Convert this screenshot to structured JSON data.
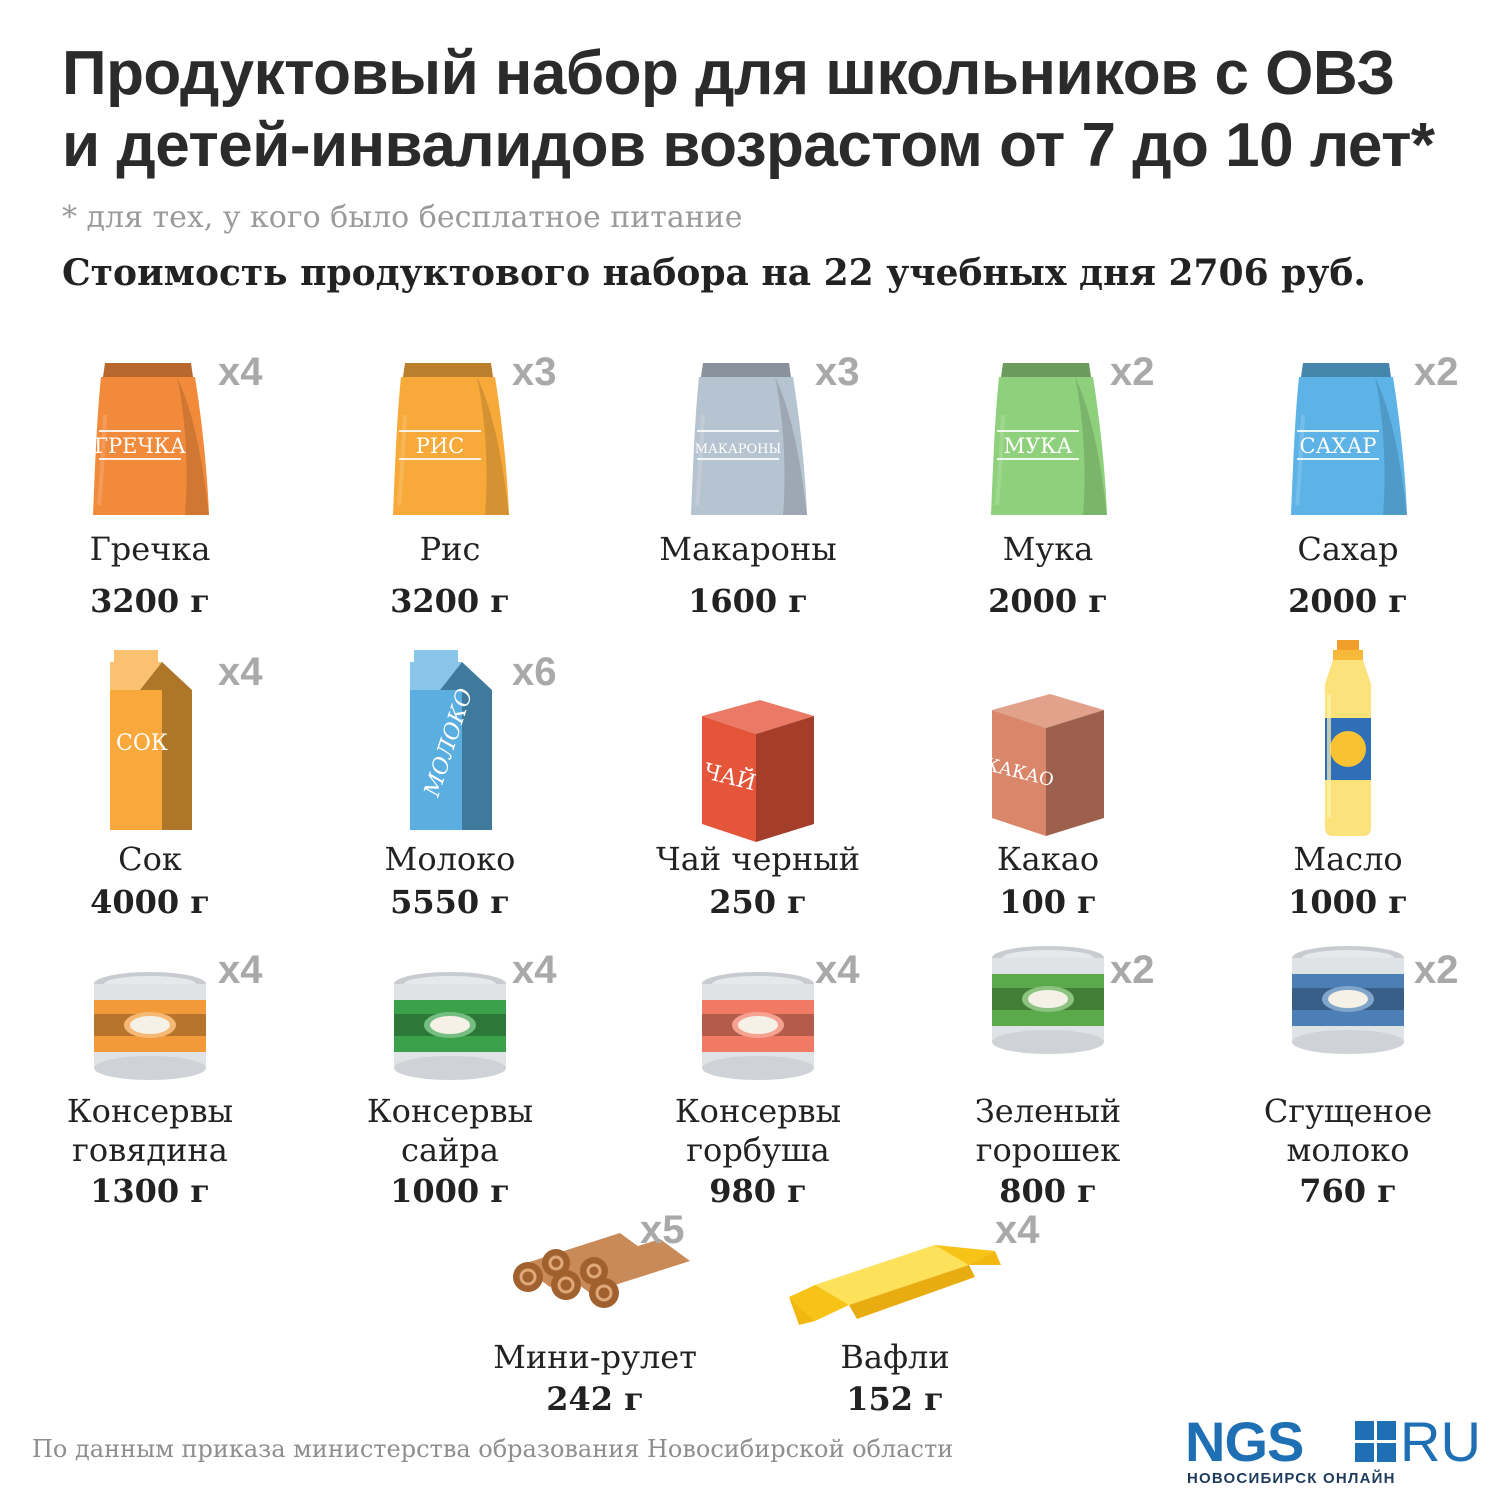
{
  "header": {
    "title_line1": "Продуктовый набор для школьников с ОВЗ",
    "title_line2": "и детей-инвалидов возрастом от 7 до 10 лет*",
    "note": "* для тех, у кого было бесплатное питание",
    "cost": "Стоимость продуктового набора на 22 учебных дня 2706 руб."
  },
  "items": [
    {
      "name": "Гречка",
      "weight": "3200 г",
      "mult": "x4",
      "icon": "buckwheat-bag-icon",
      "label": "ГРЕЧКА",
      "color": "#f28a3c"
    },
    {
      "name": "Рис",
      "weight": "3200 г",
      "mult": "x3",
      "icon": "rice-bag-icon",
      "label": "РИС",
      "color": "#f7a93a"
    },
    {
      "name": "Макароны",
      "weight": "1600 г",
      "mult": "x3",
      "icon": "pasta-bag-icon",
      "label": "МАКАРОНЫ",
      "color": "#b6c3d0"
    },
    {
      "name": "Мука",
      "weight": "2000 г",
      "mult": "x2",
      "icon": "flour-bag-icon",
      "label": "МУКА",
      "color": "#8fd07c"
    },
    {
      "name": "Сахар",
      "weight": "2000 г",
      "mult": "x2",
      "icon": "sugar-bag-icon",
      "label": "САХАР",
      "color": "#5db2e6"
    },
    {
      "name": "Сок",
      "weight": "4000 г",
      "mult": "x4",
      "icon": "juice-carton-icon",
      "label": "СОК",
      "color": "#f9a93b"
    },
    {
      "name": "Молоко",
      "weight": "5550 г",
      "mult": "x6",
      "icon": "milk-carton-icon",
      "label": "МОЛОКО",
      "color": "#5aaee0"
    },
    {
      "name": "Чай черный",
      "weight": "250 г",
      "mult": "",
      "icon": "tea-box-icon",
      "label": "ЧАЙ",
      "color": "#e4553a"
    },
    {
      "name": "Какао",
      "weight": "100 г",
      "mult": "",
      "icon": "cocoa-box-icon",
      "label": "КАКАО",
      "color": "#d9866a"
    },
    {
      "name": "Масло",
      "weight": "1000 г",
      "mult": "",
      "icon": "oil-bottle-icon",
      "label": "",
      "color": "#fbe27a"
    },
    {
      "name": "Консервы\nговядина",
      "weight": "1300 г",
      "mult": "x4",
      "icon": "beef-can-icon",
      "label": "",
      "color": "#f29a3a"
    },
    {
      "name": "Консервы\nсайра",
      "weight": "1000 г",
      "mult": "x4",
      "icon": "saury-can-icon",
      "label": "",
      "color": "#3aa04a"
    },
    {
      "name": "Консервы\nгорбуша",
      "weight": "980 г",
      "mult": "x4",
      "icon": "salmon-can-icon",
      "label": "",
      "color": "#f07a64"
    },
    {
      "name": "Зеленый\nгорошек",
      "weight": "800 г",
      "mult": "x2",
      "icon": "peas-can-icon",
      "label": "",
      "color": "#5aa94a"
    },
    {
      "name": "Сгущеное\nмолоко",
      "weight": "760 г",
      "mult": "x2",
      "icon": "condensed-milk-can-icon",
      "label": "",
      "color": "#4b7fb5"
    },
    {
      "name": "Мини-рулет",
      "weight": "242 г",
      "mult": "x5",
      "icon": "mini-roll-icon",
      "label": "",
      "color": "#c98a5a"
    },
    {
      "name": "Вафли",
      "weight": "152 г",
      "mult": "x4",
      "icon": "waffle-pack-icon",
      "label": "",
      "color": "#fcd21e"
    }
  ],
  "footer": {
    "source": "По данным приказа министерства образования Новосибирской области",
    "logo_main": "NGS",
    "logo_ru": "RU",
    "logo_sub": "НОВОСИБИРСК ОНЛАЙН"
  }
}
